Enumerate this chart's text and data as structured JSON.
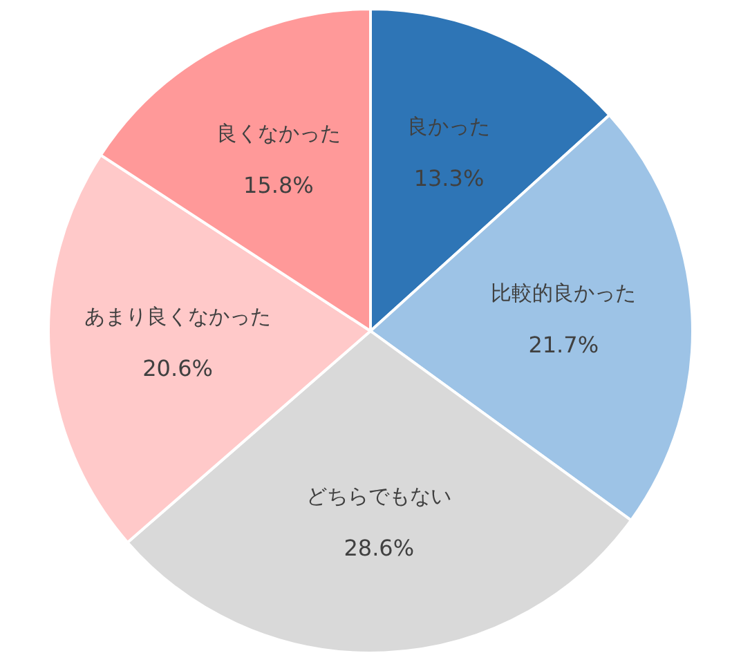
{
  "chart_data": {
    "type": "pie",
    "categories": [
      "良かった",
      "比較的良かった",
      "どちらでもない",
      "あまり良くなかった",
      "良くなかった"
    ],
    "values": [
      13.3,
      21.7,
      28.6,
      20.6,
      15.8
    ],
    "colors": [
      "#2e75b6",
      "#9dc3e6",
      "#d9d9d9",
      "#ffc9c9",
      "#ff9999"
    ],
    "value_labels": [
      "13.3%",
      "21.7%",
      "28.6%",
      "20.6%",
      "15.8%"
    ]
  }
}
